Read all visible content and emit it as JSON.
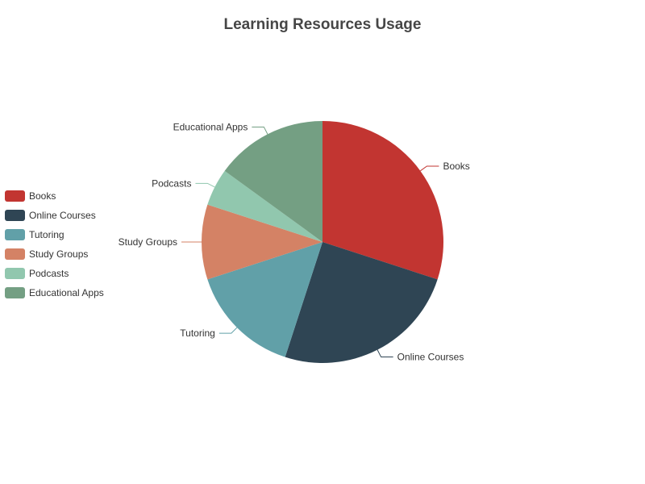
{
  "chart_data": {
    "type": "pie",
    "title": "Learning Resources Usage",
    "legend_position": "left",
    "categories": [
      "Books",
      "Online Courses",
      "Tutoring",
      "Study Groups",
      "Podcasts",
      "Educational Apps"
    ],
    "values": [
      30,
      25,
      15,
      10,
      5,
      15
    ],
    "colors": [
      "#c23531",
      "#2f4554",
      "#61a0a8",
      "#d48265",
      "#91c7ae",
      "#749f83"
    ]
  }
}
